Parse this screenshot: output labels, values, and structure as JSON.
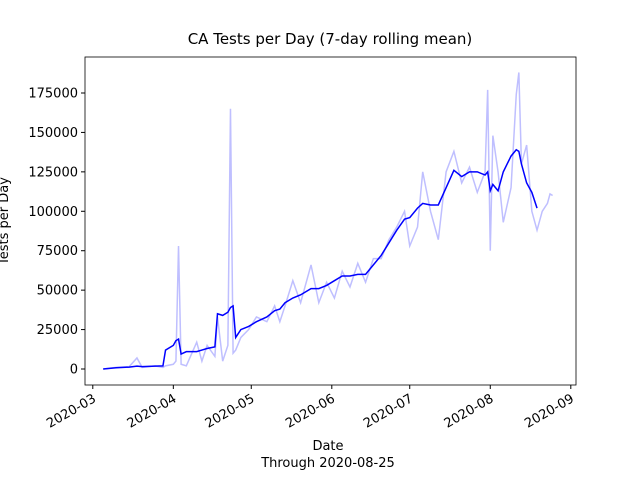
{
  "chart_data": {
    "type": "line",
    "title": "CA Tests per Day (7-day rolling mean)",
    "x_label": "Date",
    "x_sublabel": "Through 2020-08-25",
    "y_label": "Tests per Day",
    "x": [
      "2020-03-05",
      "2020-03-10",
      "2020-03-15",
      "2020-03-18",
      "2020-03-20",
      "2020-03-25",
      "2020-03-28",
      "2020-03-29",
      "2020-04-01",
      "2020-04-02",
      "2020-04-03",
      "2020-04-04",
      "2020-04-06",
      "2020-04-10",
      "2020-04-12",
      "2020-04-14",
      "2020-04-17",
      "2020-04-18",
      "2020-04-20",
      "2020-04-22",
      "2020-04-23",
      "2020-04-24",
      "2020-04-25",
      "2020-04-27",
      "2020-04-30",
      "2020-05-03",
      "2020-05-07",
      "2020-05-10",
      "2020-05-12",
      "2020-05-14",
      "2020-05-17",
      "2020-05-20",
      "2020-05-24",
      "2020-05-27",
      "2020-05-30",
      "2020-06-02",
      "2020-06-05",
      "2020-06-08",
      "2020-06-11",
      "2020-06-14",
      "2020-06-17",
      "2020-06-20",
      "2020-06-23",
      "2020-06-26",
      "2020-06-29",
      "2020-07-01",
      "2020-07-04",
      "2020-07-06",
      "2020-07-09",
      "2020-07-12",
      "2020-07-15",
      "2020-07-18",
      "2020-07-21",
      "2020-07-24",
      "2020-07-27",
      "2020-07-30",
      "2020-07-31",
      "2020-08-01",
      "2020-08-02",
      "2020-08-04",
      "2020-08-06",
      "2020-08-09",
      "2020-08-11",
      "2020-08-12",
      "2020-08-13",
      "2020-08-15",
      "2020-08-17",
      "2020-08-19",
      "2020-08-21",
      "2020-08-23",
      "2020-08-24",
      "2020-08-25"
    ],
    "series": [
      {
        "name": "Tests per Day",
        "color": "#bfbfff",
        "values": [
          0,
          1000,
          1500,
          7000,
          1000,
          2000,
          1000,
          2000,
          3000,
          5000,
          78000,
          3000,
          2000,
          17000,
          5000,
          15000,
          8000,
          33000,
          5000,
          15000,
          165000,
          10000,
          12000,
          20000,
          25000,
          33000,
          30000,
          40000,
          30000,
          40000,
          56000,
          42000,
          66000,
          42000,
          55000,
          45000,
          62000,
          52000,
          67000,
          55000,
          70000,
          70000,
          82000,
          90000,
          100000,
          78000,
          90000,
          125000,
          100000,
          82000,
          125000,
          138000,
          118000,
          128000,
          112000,
          125000,
          177000,
          75000,
          148000,
          125000,
          93000,
          115000,
          174000,
          188000,
          130000,
          142000,
          100000,
          88000,
          100000,
          105000,
          111000,
          110000
        ]
      },
      {
        "name": "7-day rolling mean",
        "color": "#0000ff",
        "values": [
          0,
          800,
          1200,
          1800,
          1500,
          1800,
          2000,
          12000,
          15000,
          18000,
          19000,
          9500,
          11000,
          11000,
          12000,
          13000,
          14000,
          35000,
          34000,
          36000,
          39000,
          40000,
          20000,
          25000,
          27000,
          30000,
          33000,
          37000,
          38000,
          42000,
          45000,
          47000,
          51000,
          51000,
          53000,
          56000,
          59000,
          59000,
          60000,
          60000,
          66000,
          72000,
          80000,
          88000,
          95000,
          96000,
          102000,
          105000,
          104000,
          104000,
          115000,
          126000,
          122000,
          125000,
          125000,
          123000,
          125000,
          113000,
          117000,
          113000,
          125000,
          135000,
          139000,
          138000,
          130000,
          118000,
          112000,
          102000,
          null,
          null,
          null,
          null
        ]
      }
    ],
    "xlim": [
      "2020-02-27",
      "2020-09-03"
    ],
    "xticks": [
      {
        "value": "2020-03-01",
        "label": "2020-03"
      },
      {
        "value": "2020-04-01",
        "label": "2020-04"
      },
      {
        "value": "2020-05-01",
        "label": "2020-05"
      },
      {
        "value": "2020-06-01",
        "label": "2020-06"
      },
      {
        "value": "2020-07-01",
        "label": "2020-07"
      },
      {
        "value": "2020-08-01",
        "label": "2020-08"
      },
      {
        "value": "2020-09-01",
        "label": "2020-09"
      }
    ],
    "ylim": [
      -10145,
      197826
    ],
    "yticks": [
      0,
      25000,
      50000,
      75000,
      100000,
      125000,
      150000,
      175000
    ]
  }
}
